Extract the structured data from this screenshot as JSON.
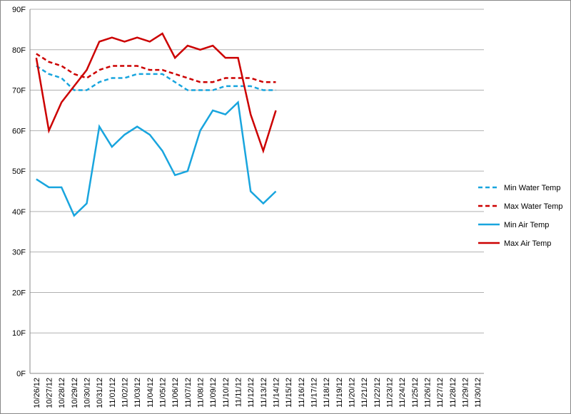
{
  "chart_data": {
    "type": "line",
    "categories": [
      "10/26/12",
      "10/27/12",
      "10/28/12",
      "10/29/12",
      "10/30/12",
      "10/31/12",
      "11/01/12",
      "11/02/12",
      "11/03/12",
      "11/04/12",
      "11/05/12",
      "11/06/12",
      "11/07/12",
      "11/08/12",
      "11/09/12",
      "11/10/12",
      "11/11/12",
      "11/12/12",
      "11/13/12",
      "11/14/12",
      "11/15/12",
      "11/16/12",
      "11/17/12",
      "11/18/12",
      "11/19/12",
      "11/20/12",
      "11/21/12",
      "11/22/12",
      "11/23/12",
      "11/24/12",
      "11/25/12",
      "11/26/12",
      "11/27/12",
      "11/28/12",
      "11/29/12",
      "11/30/12"
    ],
    "series": [
      {
        "name": "Min Water Temp",
        "color": "#19a5de",
        "style": "dashed",
        "values": [
          76,
          74,
          73,
          70,
          70,
          72,
          73,
          73,
          74,
          74,
          74,
          72,
          70,
          70,
          70,
          71,
          71,
          71,
          70,
          70,
          null,
          null,
          null,
          null,
          null,
          null,
          null,
          null,
          null,
          null,
          null,
          null,
          null,
          null,
          null,
          null
        ]
      },
      {
        "name": "Max Water Temp",
        "color": "#cc0000",
        "style": "dashed",
        "values": [
          79,
          77,
          76,
          74,
          73,
          75,
          76,
          76,
          76,
          75,
          75,
          74,
          73,
          72,
          72,
          73,
          73,
          73,
          72,
          72,
          null,
          null,
          null,
          null,
          null,
          null,
          null,
          null,
          null,
          null,
          null,
          null,
          null,
          null,
          null,
          null
        ]
      },
      {
        "name": "Min Air Temp",
        "color": "#19a5de",
        "style": "solid",
        "values": [
          48,
          46,
          46,
          39,
          42,
          61,
          56,
          59,
          61,
          59,
          55,
          49,
          50,
          60,
          65,
          64,
          67,
          45,
          42,
          45,
          null,
          null,
          null,
          null,
          null,
          null,
          null,
          null,
          null,
          null,
          null,
          null,
          null,
          null,
          null,
          null
        ]
      },
      {
        "name": "Max Air Temp",
        "color": "#cc0000",
        "style": "solid",
        "values": [
          78,
          60,
          67,
          71,
          75,
          82,
          83,
          82,
          83,
          82,
          84,
          78,
          81,
          80,
          81,
          78,
          78,
          64,
          55,
          65,
          null,
          null,
          null,
          null,
          null,
          null,
          null,
          null,
          null,
          null,
          null,
          null,
          null,
          null,
          null,
          null
        ]
      }
    ],
    "ylim": [
      0,
      90
    ],
    "yticks": [
      {
        "value": 0,
        "label": "0F"
      },
      {
        "value": 10,
        "label": "10F"
      },
      {
        "value": 20,
        "label": "20F"
      },
      {
        "value": 30,
        "label": "30F"
      },
      {
        "value": 40,
        "label": "40F"
      },
      {
        "value": 50,
        "label": "50F"
      },
      {
        "value": 60,
        "label": "60F"
      },
      {
        "value": 70,
        "label": "70F"
      },
      {
        "value": 80,
        "label": "80F"
      },
      {
        "value": 90,
        "label": "90F"
      }
    ],
    "grid": true,
    "legend": "right"
  }
}
